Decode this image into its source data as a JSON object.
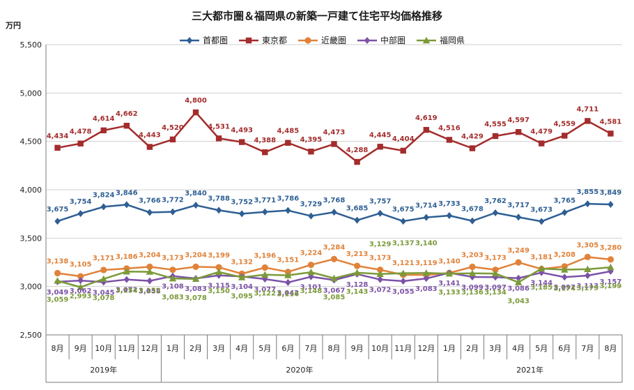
{
  "chart_data": {
    "type": "line",
    "title": "三大都市圏＆福岡県の新築一戸建て住宅平均価格推移",
    "ylabel": "万円",
    "ylim": [
      2500,
      5500
    ],
    "yticks": [
      2500,
      3000,
      3500,
      4000,
      4500,
      5000,
      5500
    ],
    "ytick_labels": [
      "2,500",
      "3,000",
      "3,500",
      "4,000",
      "4,500",
      "5,000",
      "5,500"
    ],
    "grid": true,
    "legend_position": "top",
    "categories": [
      "8月",
      "9月",
      "10月",
      "11月",
      "12月",
      "1月",
      "2月",
      "3月",
      "4月",
      "5月",
      "6月",
      "7月",
      "8月",
      "9月",
      "10月",
      "11月",
      "12月",
      "1月",
      "2月",
      "3月",
      "4月",
      "5月",
      "6月",
      "7月",
      "8月"
    ],
    "year_groups": [
      {
        "label": "2019年",
        "start": 0,
        "end": 4
      },
      {
        "label": "2020年",
        "start": 5,
        "end": 16
      },
      {
        "label": "2021年",
        "start": 17,
        "end": 24
      }
    ],
    "series": [
      {
        "name": "首都圏",
        "color": "#2e5f94",
        "marker": "diamond",
        "values": [
          3675,
          3754,
          3824,
          3846,
          3766,
          3772,
          3840,
          3788,
          3752,
          3771,
          3786,
          3729,
          3768,
          3685,
          3757,
          3675,
          3714,
          3733,
          3678,
          3762,
          3717,
          3673,
          3765,
          3855,
          3849
        ],
        "labels": [
          "3,675",
          "3,754",
          "3,824",
          "3,846",
          "3,766",
          "3,772",
          "3,840",
          "3,788",
          "3,752",
          "3,771",
          "3,786",
          "3,729",
          "3,768",
          "3,685",
          "3,757",
          "3,675",
          "3,714",
          "3,733",
          "3,678",
          "3,762",
          "3,717",
          "3,673",
          "3,765",
          "3,855",
          "3,849"
        ]
      },
      {
        "name": "東京都",
        "color": "#a32c2c",
        "marker": "square",
        "values": [
          4434,
          4478,
          4614,
          4662,
          4443,
          4520,
          4800,
          4531,
          4493,
          4388,
          4485,
          4395,
          4473,
          4288,
          4445,
          4404,
          4619,
          4516,
          4429,
          4555,
          4597,
          4479,
          4559,
          4711,
          4581
        ],
        "labels": [
          "4,434",
          "4,478",
          "4,614",
          "4,662",
          "4,443",
          "4,520",
          "4,800",
          "4,531",
          "4,493",
          "4,388",
          "4,485",
          "4,395",
          "4,473",
          "4,288",
          "4,445",
          "4,404",
          "4,619",
          "4,516",
          "4,429",
          "4,555",
          "4,597",
          "4,479",
          "4,559",
          "4,711",
          "4,581"
        ]
      },
      {
        "name": "近畿圏",
        "color": "#e0823a",
        "marker": "circle",
        "values": [
          3138,
          3105,
          3171,
          3186,
          3204,
          3173,
          3204,
          3199,
          3132,
          3196,
          3151,
          3224,
          3284,
          3213,
          3173,
          3121,
          3119,
          3140,
          3203,
          3173,
          3249,
          3181,
          3208,
          3305,
          3280
        ],
        "labels": [
          "3,138",
          "3,105",
          "3,171",
          "3,186",
          "3,204",
          "3,173",
          "3,204",
          "3,199",
          "3,132",
          "3,196",
          "3,151",
          "3,224",
          "3,284",
          "3,213",
          "3,173",
          "3,121",
          "3,119",
          "3,140",
          "3,203",
          "3,173",
          "3,249",
          "3,181",
          "3,208",
          "3,305",
          "3,280"
        ]
      },
      {
        "name": "中部圏",
        "color": "#7c52a6",
        "marker": "diamond",
        "values": [
          3049,
          3062,
          3045,
          3072,
          3058,
          3108,
          3083,
          3115,
          3104,
          3077,
          3042,
          3101,
          3067,
          3128,
          3072,
          3055,
          3083,
          3141,
          3099,
          3097,
          3086,
          3144,
          3097,
          3113,
          3157
        ],
        "labels": [
          "3,049",
          "3,062",
          "3,045",
          "3,072",
          "3,058",
          "3,108",
          "3,083",
          "3,115",
          "3,104",
          "3,077",
          "3,042",
          "3,101",
          "3,067",
          "3,128",
          "3,072",
          "3,055",
          "3,083",
          "3,141",
          "3,099",
          "3,097",
          "3,086",
          "3,144",
          "3,097",
          "3,113",
          "3,157"
        ]
      },
      {
        "name": "福岡県",
        "color": "#7b9a3a",
        "marker": "triangle",
        "values": [
          3059,
          2993,
          3078,
          3154,
          3152,
          3083,
          3078,
          3150,
          3095,
          3122,
          3116,
          3148,
          3085,
          3143,
          3129,
          3137,
          3140,
          3133,
          3136,
          3134,
          3043,
          3185,
          3174,
          3179,
          3199
        ],
        "labels": [
          "3,059",
          "2,993",
          "3,078",
          "3,154",
          "3,152",
          "3,083",
          "3,078",
          "3,150",
          "3,095",
          "3,122",
          "3,116",
          "3,148",
          "3,085",
          "3,143",
          "3,129",
          "3,137",
          "3,140",
          "3,133",
          "3,136",
          "3,134",
          "3,043",
          "3,185",
          "3,174",
          "3,179",
          "3,199"
        ]
      }
    ]
  }
}
